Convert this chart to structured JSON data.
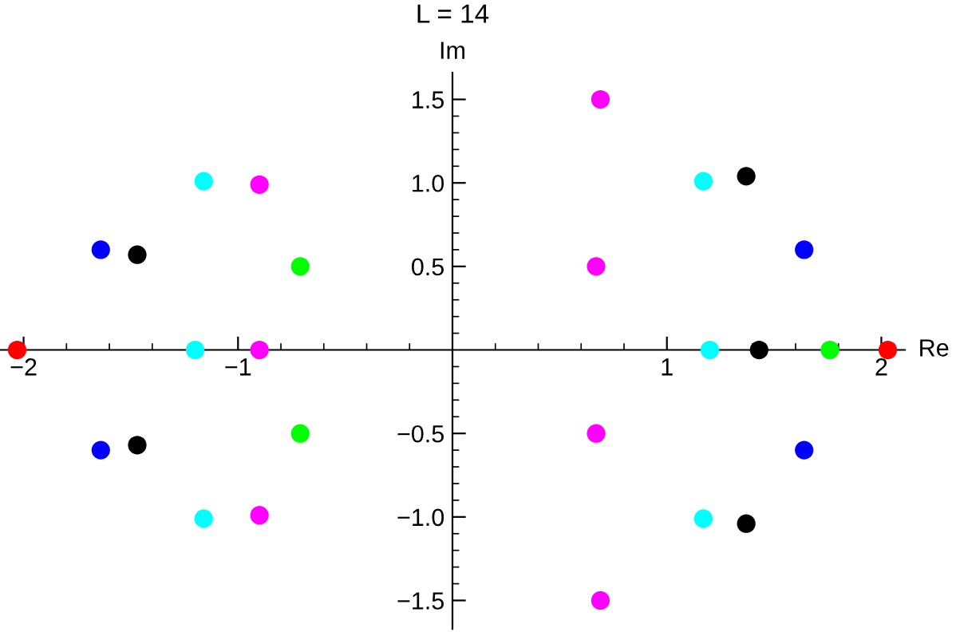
{
  "chart_data": {
    "type": "scatter",
    "title": "L = 14",
    "xlabel": "Re",
    "ylabel": "Im",
    "xlim": [
      -2.11,
      2.11
    ],
    "ylim": [
      -1.67,
      1.66
    ],
    "xticks": [
      {
        "value": -2,
        "label": "−2"
      },
      {
        "value": -1.8,
        "label": null
      },
      {
        "value": -1.6,
        "label": null
      },
      {
        "value": -1.4,
        "label": null
      },
      {
        "value": -1.2,
        "label": null
      },
      {
        "value": -1,
        "label": "−1"
      },
      {
        "value": -0.8,
        "label": null
      },
      {
        "value": -0.6,
        "label": null
      },
      {
        "value": -0.4,
        "label": null
      },
      {
        "value": -0.2,
        "label": null
      },
      {
        "value": 0.2,
        "label": null
      },
      {
        "value": 0.4,
        "label": null
      },
      {
        "value": 0.6,
        "label": null
      },
      {
        "value": 0.8,
        "label": null
      },
      1,
      {
        "value": 1.2,
        "label": null
      },
      {
        "value": 1.4,
        "label": null
      },
      {
        "value": 1.6,
        "label": null
      },
      {
        "value": 1.8,
        "label": null
      },
      2
    ],
    "yticks": [
      {
        "value": -1.5,
        "label": "−1.5"
      },
      {
        "value": -1.4,
        "label": null
      },
      {
        "value": -1.3,
        "label": null
      },
      {
        "value": -1.2,
        "label": null
      },
      {
        "value": -1.1,
        "label": null
      },
      {
        "value": -1,
        "label": "−1.0"
      },
      {
        "value": -0.9,
        "label": null
      },
      {
        "value": -0.8,
        "label": null
      },
      {
        "value": -0.7,
        "label": null
      },
      {
        "value": -0.6,
        "label": null
      },
      {
        "value": -0.5,
        "label": "−0.5"
      },
      {
        "value": -0.4,
        "label": null
      },
      {
        "value": -0.3,
        "label": null
      },
      {
        "value": -0.2,
        "label": null
      },
      {
        "value": -0.1,
        "label": null
      },
      {
        "value": 0.1,
        "label": null
      },
      {
        "value": 0.2,
        "label": null
      },
      {
        "value": 0.3,
        "label": null
      },
      {
        "value": 0.4,
        "label": null
      },
      0.5,
      {
        "value": 0.6,
        "label": null
      },
      {
        "value": 0.7,
        "label": null
      },
      {
        "value": 0.8,
        "label": null
      },
      {
        "value": 0.9,
        "label": null
      },
      {
        "value": 1,
        "label": "1.0"
      },
      {
        "value": 1.1,
        "label": null
      },
      {
        "value": 1.2,
        "label": null
      },
      {
        "value": 1.3,
        "label": null
      },
      {
        "value": 1.4,
        "label": null
      },
      1.5
    ],
    "grid": false,
    "marker": "circle",
    "series": [
      {
        "color": "#ff0000",
        "x": [
          -2.03,
          2.03
        ],
        "values": [
          0,
          0
        ]
      },
      {
        "color": "#0000ff",
        "x": [
          -1.64,
          -1.64,
          1.64,
          1.64
        ],
        "values": [
          0.6,
          -0.6,
          0.6,
          -0.6
        ]
      },
      {
        "color": "#000000",
        "x": [
          -1.47,
          -1.47,
          1.37,
          1.37,
          1.43
        ],
        "values": [
          0.57,
          -0.57,
          1.04,
          -1.04,
          0
        ]
      },
      {
        "color": "#00ffff",
        "x": [
          -1.16,
          -1.16,
          -1.2,
          1.17,
          1.17,
          1.2
        ],
        "values": [
          1.01,
          -1.01,
          0,
          1.01,
          -1.01,
          0
        ]
      },
      {
        "color": "#ff00ff",
        "x": [
          -0.9,
          -0.9,
          -0.9,
          0.69,
          0.67,
          0.67,
          0.69
        ],
        "values": [
          0.99,
          0,
          -0.99,
          1.5,
          0.5,
          -0.5,
          -1.5
        ]
      },
      {
        "color": "#00ff00",
        "x": [
          -0.71,
          -0.71,
          1.76
        ],
        "values": [
          0.5,
          -0.5,
          0
        ]
      }
    ]
  }
}
